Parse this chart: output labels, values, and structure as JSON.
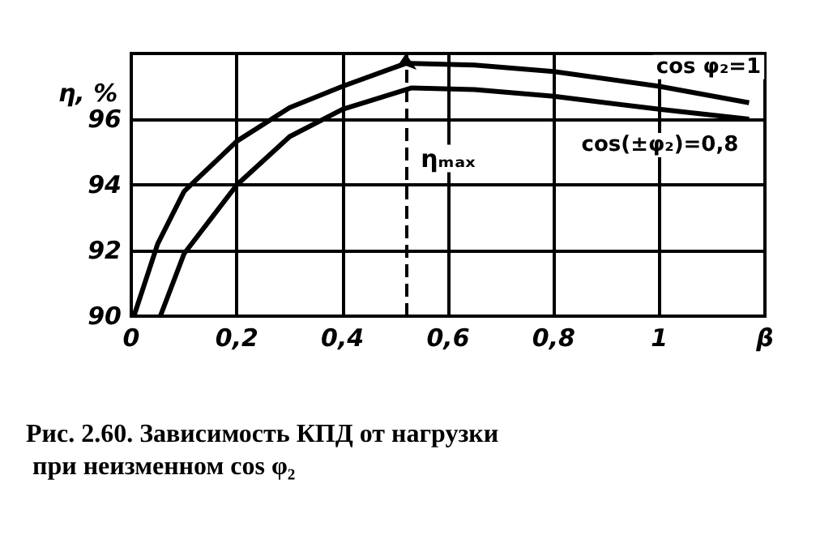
{
  "chart_data": {
    "type": "line",
    "ylabel": "η, %",
    "xlim": [
      0,
      1.2
    ],
    "xticks": [
      0,
      {
        "value": 0.2,
        "label": "0,2"
      },
      {
        "value": 0.4,
        "label": "0,4"
      },
      {
        "value": 0.6,
        "label": "0,6"
      },
      {
        "value": 0.8,
        "label": "0,8"
      },
      1,
      {
        "value": 1.2,
        "label": "β"
      }
    ],
    "ylim": [
      90,
      98
    ],
    "yticks": [
      90,
      92,
      94,
      96,
      {
        "value": 98,
        "label": null
      }
    ],
    "grid": true,
    "legend": false,
    "marker": "none",
    "line_style": "solid",
    "series": [
      {
        "name": "cos φ₂=1",
        "color": "#000000",
        "x": [
          0.005,
          0.05,
          0.1,
          0.2,
          0.3,
          0.4,
          0.52,
          0.65,
          0.8,
          1,
          1.17
        ],
        "values": [
          90,
          92.2,
          93.8,
          95.33,
          96.35,
          97.0,
          97.7,
          97.65,
          97.45,
          97.0,
          96.5
        ]
      },
      {
        "name": "cos(±φ₂)=0,8",
        "color": "#000000",
        "x": [
          0.055,
          0.1,
          0.2,
          0.3,
          0.4,
          0.53,
          0.65,
          0.8,
          1,
          1.17
        ],
        "values": [
          90,
          91.9,
          94.0,
          95.47,
          96.3,
          96.95,
          96.9,
          96.7,
          96.3,
          96.0
        ]
      }
    ],
    "ref_lines": [
      {
        "axis": "x",
        "value": 0.52,
        "label": "ηₘₐₓ",
        "line_style": "dashed"
      }
    ],
    "annotations": [
      "Рис. 2.60. Зависимость КПД от нагрузки при неизменном cos φ₂"
    ]
  }
}
